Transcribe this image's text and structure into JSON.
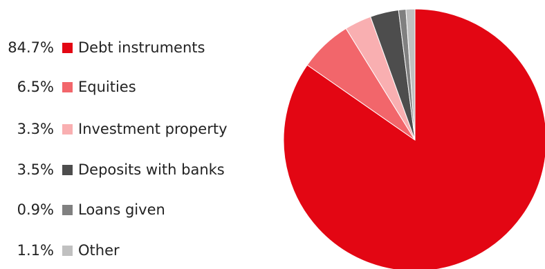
{
  "chart_data": {
    "type": "pie",
    "title": "",
    "slices": [
      {
        "label": "Debt instruments",
        "value": 84.7,
        "value_label": "84.7%",
        "color": "#e30613"
      },
      {
        "label": "Equities",
        "value": 6.5,
        "value_label": "6.5%",
        "color": "#f2666b"
      },
      {
        "label": "Investment property",
        "value": 3.3,
        "value_label": "3.3%",
        "color": "#f9afb1"
      },
      {
        "label": "Deposits with banks",
        "value": 3.5,
        "value_label": "3.5%",
        "color": "#4d4d4d"
      },
      {
        "label": "Loans given",
        "value": 0.9,
        "value_label": "0.9%",
        "color": "#808080"
      },
      {
        "label": "Other",
        "value": 1.1,
        "value_label": "1.1%",
        "color": "#c0c0c0"
      }
    ],
    "start_angle_deg": 0,
    "direction": "clockwise",
    "legend_position": "left"
  }
}
